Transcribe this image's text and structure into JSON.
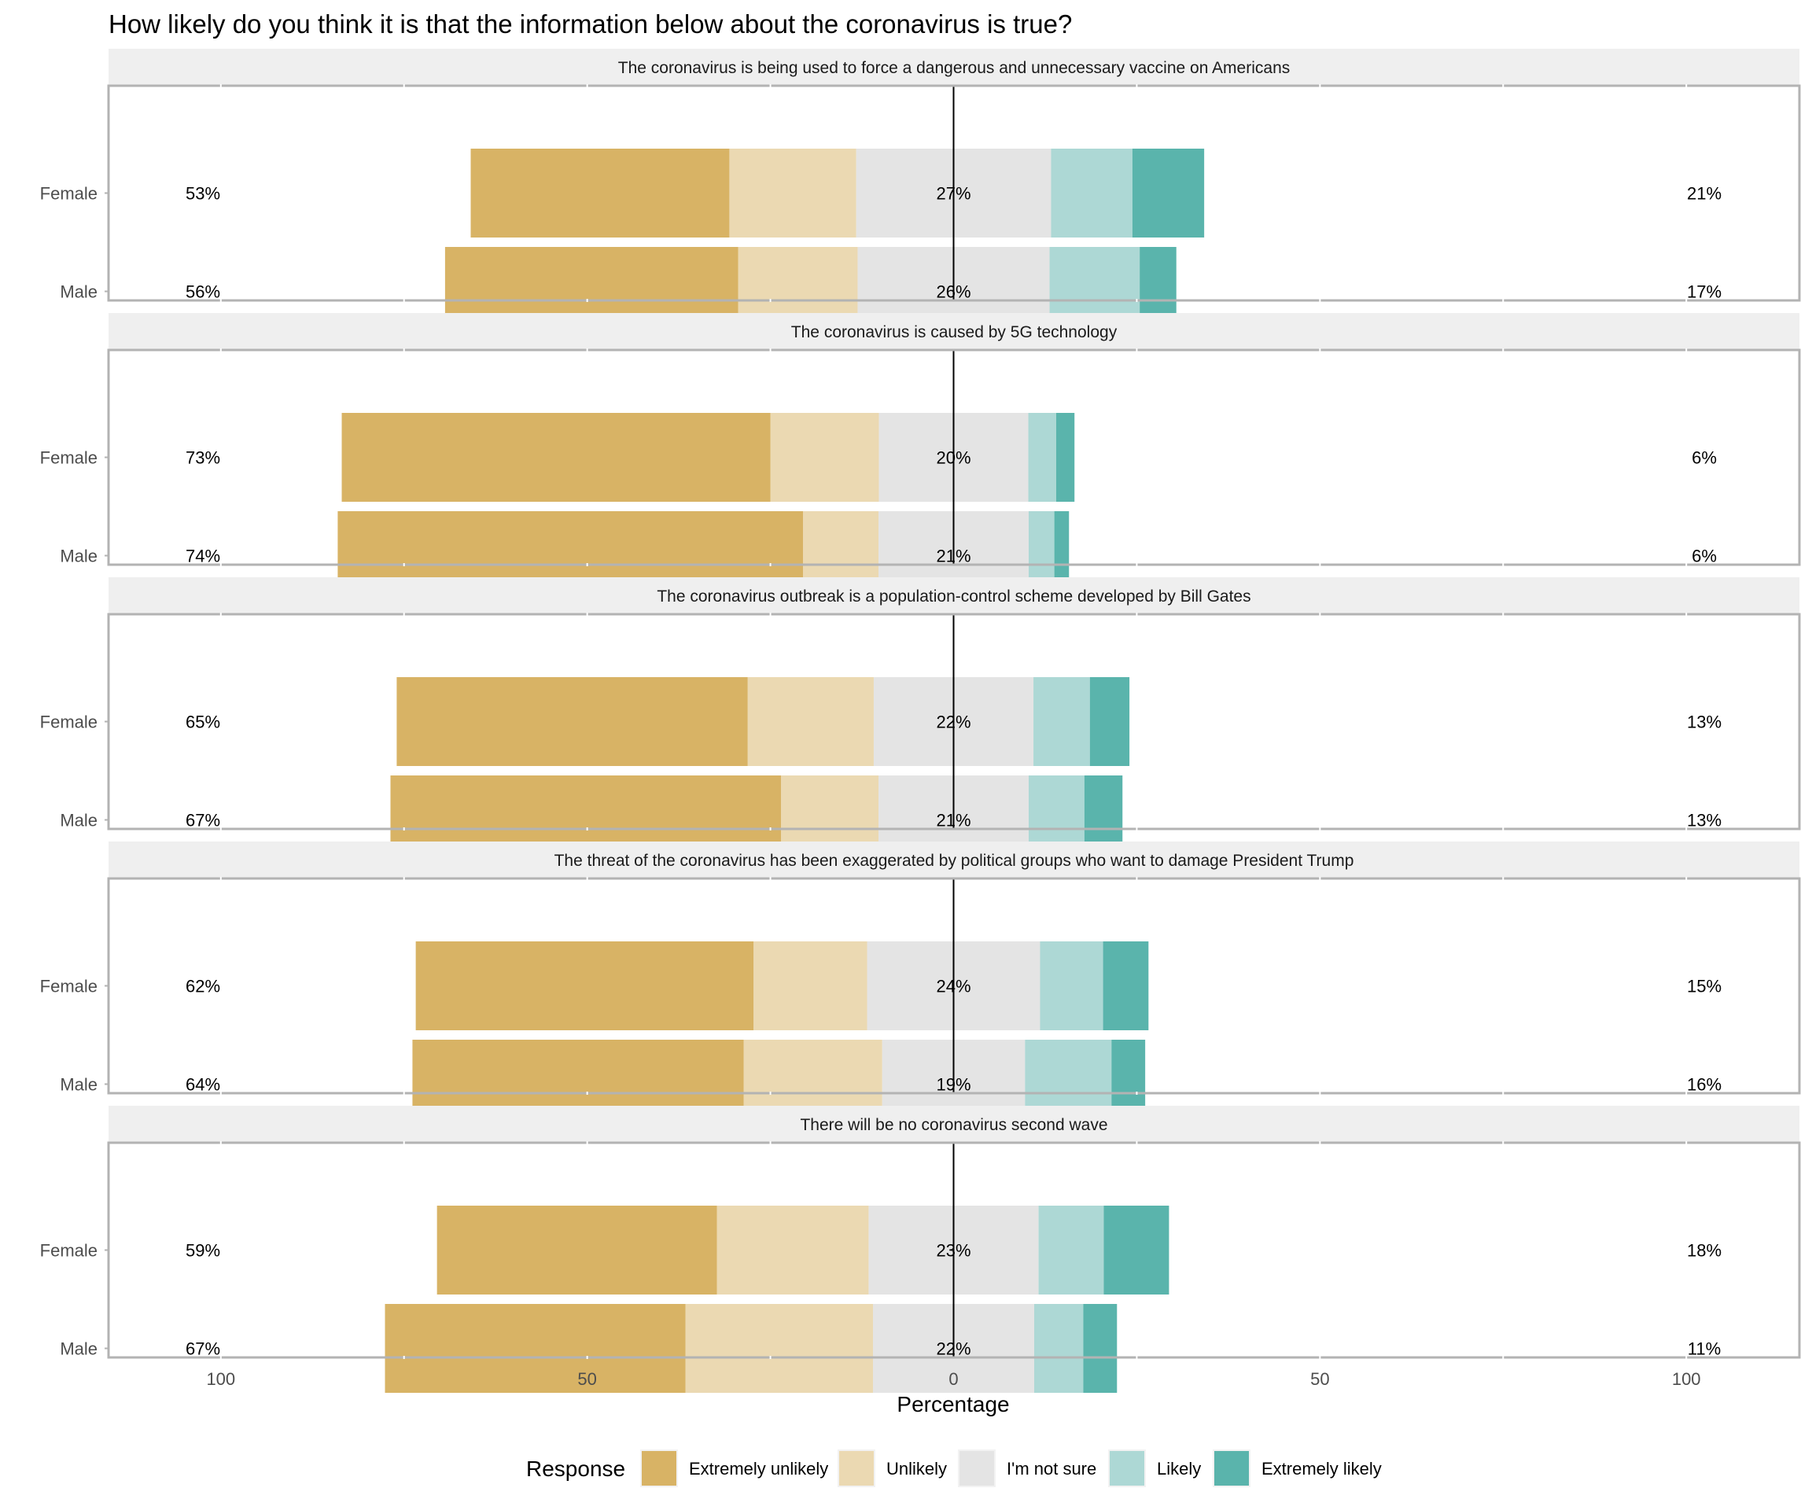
{
  "chart_data": {
    "type": "bar",
    "subtype": "diverging-stacked-horizontal",
    "title": "How likely do you think it is that the information below about the coronavirus is true?",
    "xlabel": "Percentage",
    "ylabel": "",
    "xlim": [
      -115,
      115
    ],
    "x_ticks": [
      -100,
      -50,
      0,
      50,
      100
    ],
    "x_tick_labels": [
      "100",
      "50",
      "0",
      "50",
      "100"
    ],
    "minor_ticks": [
      -75,
      -25,
      25,
      75
    ],
    "grid": false,
    "legend": {
      "title": "Response",
      "position": "bottom",
      "entries": [
        "Extremely unlikely",
        "Unlikely",
        "I'm not sure",
        "Likely",
        "Extremely likely"
      ]
    },
    "colors": {
      "Extremely unlikely": "#d8b365",
      "Unlikely": "#ebd9b2",
      "I'm not sure": "#e4e4e4",
      "Likely": "#add8d5",
      "Extremely likely": "#5ab4ac"
    },
    "categories": [
      "Female",
      "Male"
    ],
    "panels": [
      {
        "statement": "The coronavirus is being used to force a dangerous and unnecessary vaccine on Americans",
        "rows": [
          {
            "group": "Female",
            "values": {
              "Extremely unlikely": 35.3,
              "Unlikely": 17.3,
              "I'm not sure": 26.6,
              "Likely": 11.1,
              "Extremely likely": 9.8
            },
            "left_label": "53%",
            "center_label": "27%",
            "right_label": "21%"
          },
          {
            "group": "Male",
            "values": {
              "Extremely unlikely": 40.0,
              "Unlikely": 16.3,
              "I'm not sure": 26.2,
              "Likely": 12.3,
              "Extremely likely": 5.0
            },
            "left_label": "56%",
            "center_label": "26%",
            "right_label": "17%"
          }
        ]
      },
      {
        "statement": "The coronavirus is caused by 5G technology",
        "rows": [
          {
            "group": "Female",
            "values": {
              "Extremely unlikely": 58.5,
              "Unlikely": 14.8,
              "I'm not sure": 20.4,
              "Likely": 3.8,
              "Extremely likely": 2.5
            },
            "left_label": "73%",
            "center_label": "20%",
            "right_label": "6%"
          },
          {
            "group": "Male",
            "values": {
              "Extremely unlikely": 63.5,
              "Unlikely": 10.3,
              "I'm not sure": 20.5,
              "Likely": 3.5,
              "Extremely likely": 2.0
            },
            "left_label": "74%",
            "center_label": "21%",
            "right_label": "6%"
          }
        ]
      },
      {
        "statement": "The coronavirus outbreak is a population-control scheme developed by Bill Gates",
        "rows": [
          {
            "group": "Female",
            "values": {
              "Extremely unlikely": 47.9,
              "Unlikely": 17.2,
              "I'm not sure": 21.8,
              "Likely": 7.7,
              "Extremely likely": 5.4
            },
            "left_label": "65%",
            "center_label": "22%",
            "right_label": "13%"
          },
          {
            "group": "Male",
            "values": {
              "Extremely unlikely": 53.3,
              "Unlikely": 13.3,
              "I'm not sure": 20.5,
              "Likely": 7.6,
              "Extremely likely": 5.2
            },
            "left_label": "67%",
            "center_label": "21%",
            "right_label": "13%"
          }
        ]
      },
      {
        "statement": "The threat of the coronavirus has been exaggerated by political groups who want to damage President Trump",
        "rows": [
          {
            "group": "Female",
            "values": {
              "Extremely unlikely": 46.1,
              "Unlikely": 15.5,
              "I'm not sure": 23.6,
              "Likely": 8.6,
              "Extremely likely": 6.2
            },
            "left_label": "62%",
            "center_label": "24%",
            "right_label": "15%"
          },
          {
            "group": "Male",
            "values": {
              "Extremely unlikely": 45.2,
              "Unlikely": 18.9,
              "I'm not sure": 19.5,
              "Likely": 11.8,
              "Extremely likely": 4.6
            },
            "left_label": "64%",
            "center_label": "19%",
            "right_label": "16%"
          }
        ]
      },
      {
        "statement": "There will be no coronavirus second wave",
        "rows": [
          {
            "group": "Female",
            "values": {
              "Extremely unlikely": 38.2,
              "Unlikely": 20.7,
              "I'm not sure": 23.2,
              "Likely": 8.9,
              "Extremely likely": 8.9
            },
            "left_label": "59%",
            "center_label": "23%",
            "right_label": "18%"
          },
          {
            "group": "Male",
            "values": {
              "Extremely unlikely": 41.0,
              "Unlikely": 25.6,
              "I'm not sure": 22.0,
              "Likely": 6.7,
              "Extremely likely": 4.6
            },
            "left_label": "67%",
            "center_label": "22%",
            "right_label": "11%"
          }
        ]
      }
    ]
  }
}
